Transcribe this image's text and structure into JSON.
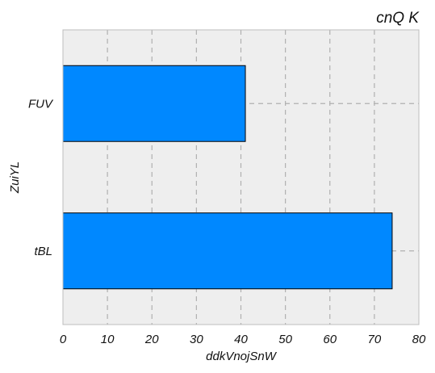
{
  "chart_data": {
    "type": "bar",
    "orientation": "horizontal",
    "title": "cnQ K",
    "xlabel": "ddkVnojSnW",
    "ylabel": "ZuiYL",
    "categories": [
      "FUV",
      "tBL"
    ],
    "values": [
      41,
      74
    ],
    "xlim": [
      0,
      80
    ],
    "x_ticks": [
      0,
      10,
      20,
      30,
      40,
      50,
      60,
      70,
      80
    ],
    "grid": true,
    "colors": {
      "bar": "#0088ff",
      "plot_background": "#eeeeee",
      "grid": "#b0b0b0"
    }
  }
}
